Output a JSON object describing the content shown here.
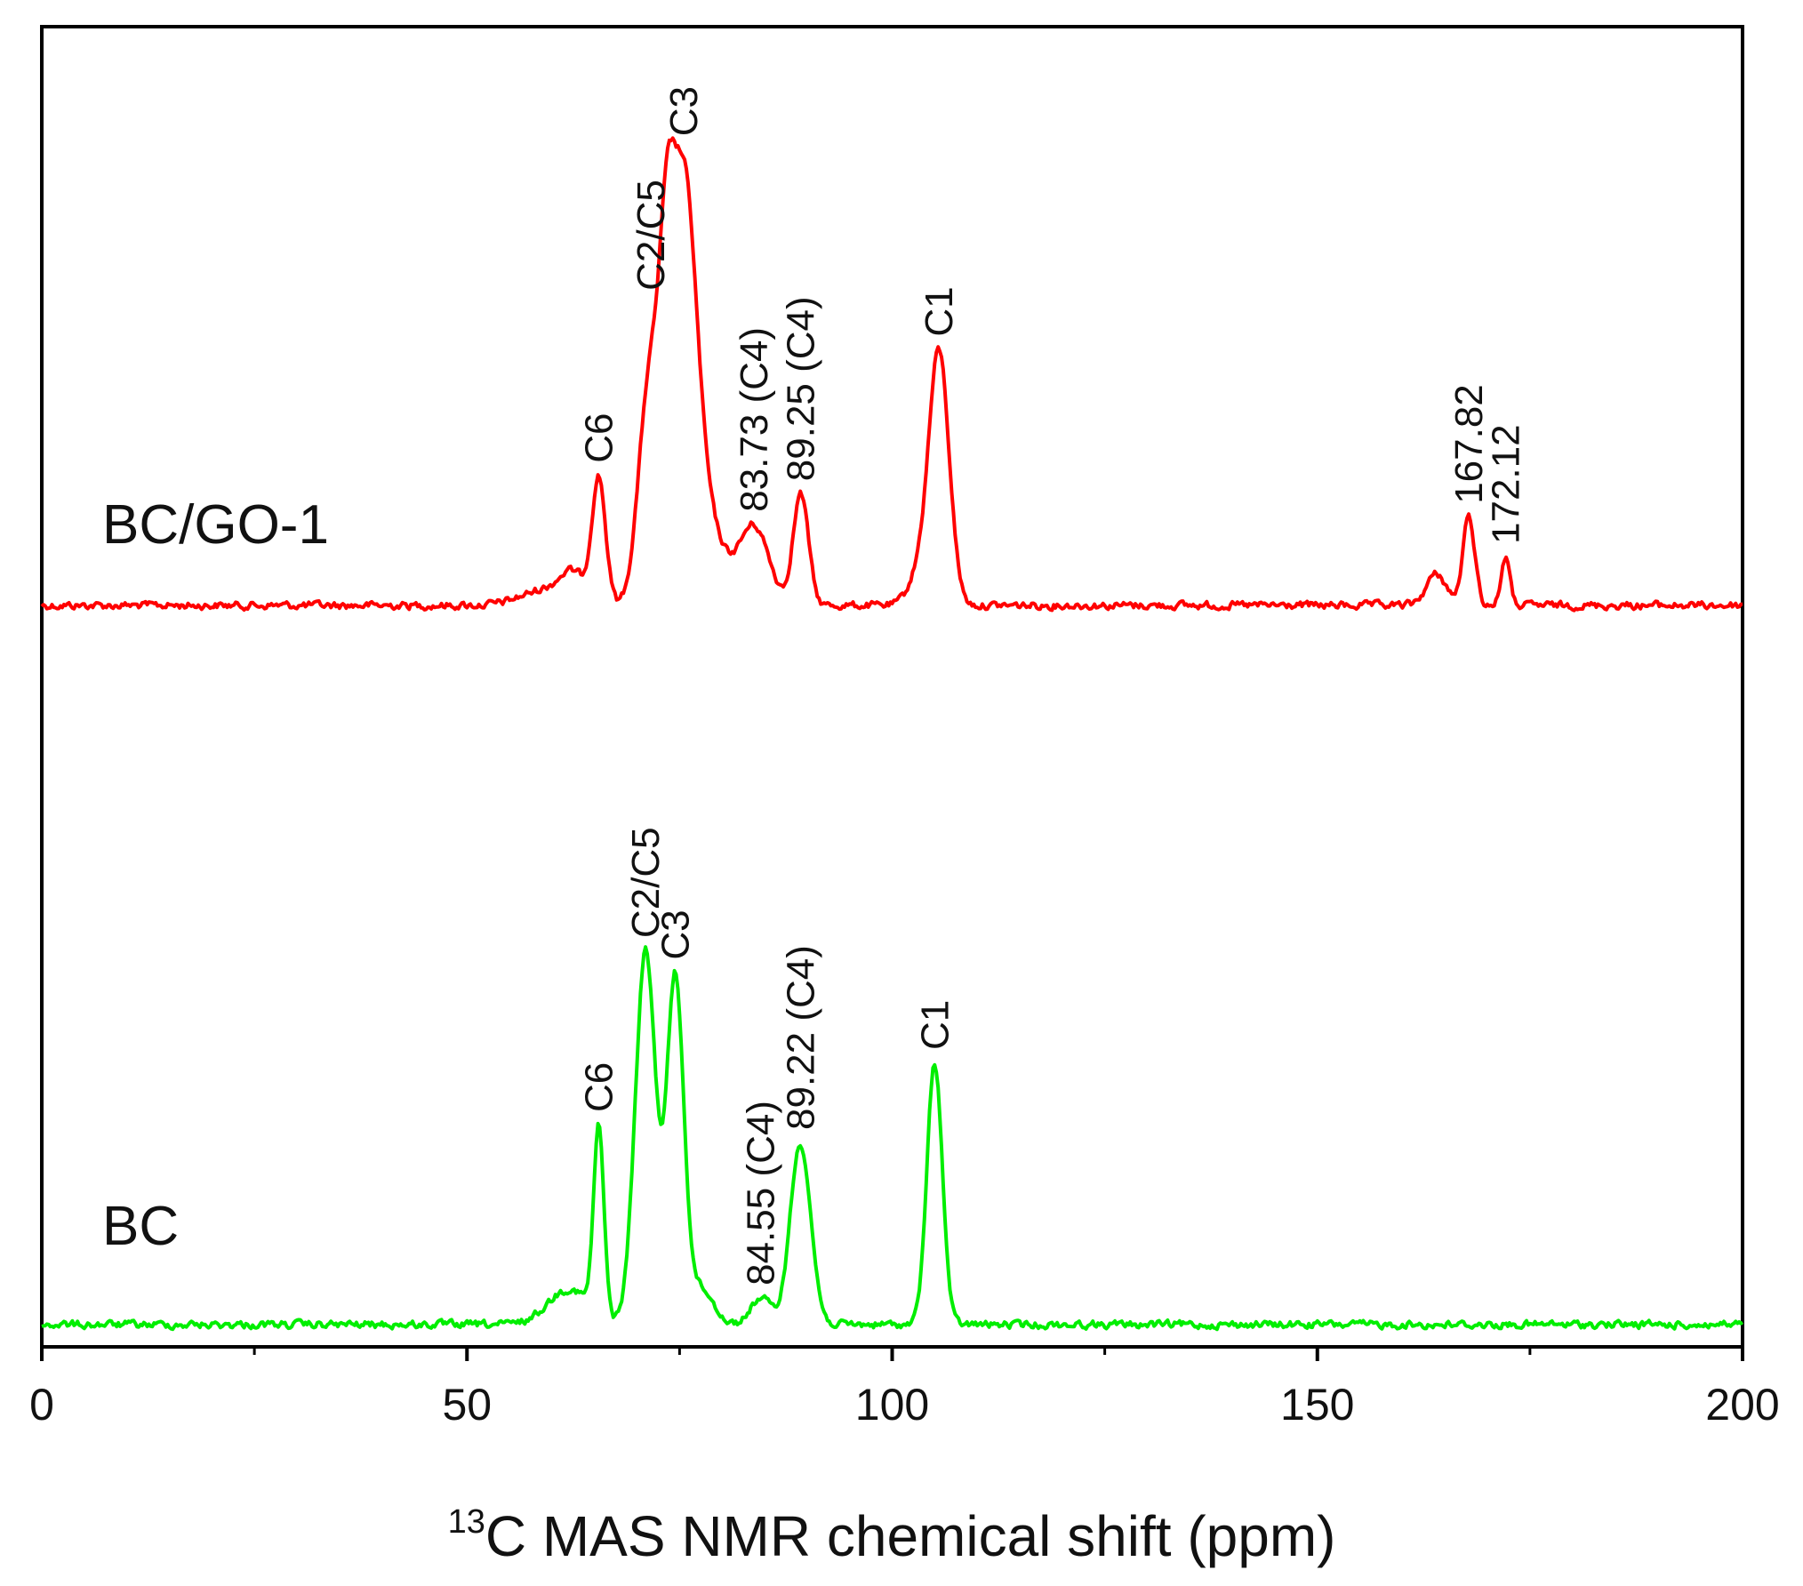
{
  "chart_data": {
    "type": "line",
    "title": "",
    "xlabel_sup": "13",
    "xlabel_main": "C MAS NMR chemical shift (ppm)",
    "ylabel": "",
    "xlim": [
      0,
      200
    ],
    "x_ticks": [
      0,
      50,
      100,
      150,
      200
    ],
    "x_minor_ticks": [
      25,
      75,
      125,
      175
    ],
    "y_ticks_shown": false,
    "series": [
      {
        "name": "BC/GO-1",
        "color": "#ff0000",
        "baseline": 0,
        "peaks": [
          {
            "x": 59.5,
            "h": 18,
            "w": 3.0
          },
          {
            "x": 62.5,
            "h": 28,
            "w": 1.5
          },
          {
            "x": 65.5,
            "h": 140,
            "w": 0.8
          },
          {
            "x": 71.5,
            "h": 250,
            "w": 1.3
          },
          {
            "x": 73.5,
            "h": 235,
            "w": 0.9
          },
          {
            "x": 75.5,
            "h": 460,
            "w": 1.5
          },
          {
            "x": 78.5,
            "h": 80,
            "w": 1.8
          },
          {
            "x": 83.7,
            "h": 90,
            "w": 1.8
          },
          {
            "x": 89.25,
            "h": 125,
            "w": 0.9
          },
          {
            "x": 103.0,
            "h": 30,
            "w": 1.2
          },
          {
            "x": 105.5,
            "h": 285,
            "w": 1.2
          },
          {
            "x": 164.0,
            "h": 35,
            "w": 1.2
          },
          {
            "x": 167.82,
            "h": 100,
            "w": 0.7
          },
          {
            "x": 172.12,
            "h": 55,
            "w": 0.5
          }
        ],
        "annotations": [
          {
            "text": "C6",
            "x": 65.5
          },
          {
            "text": "C2/C5",
            "x": 71.6
          },
          {
            "text": "C3",
            "x": 75.5
          },
          {
            "text": "83.73 (C4)",
            "x": 83.73
          },
          {
            "text": "89.25 (C4)",
            "x": 89.25
          },
          {
            "text": "C1",
            "x": 105.5
          },
          {
            "text": "167.82",
            "x": 167.82
          },
          {
            "text": "172.12",
            "x": 172.12
          }
        ],
        "label": "BC/GO-1"
      },
      {
        "name": "BC",
        "color": "#00ee00",
        "baseline": 0,
        "peaks": [
          {
            "x": 62.0,
            "h": 40,
            "w": 2.5
          },
          {
            "x": 65.5,
            "h": 210,
            "w": 0.6
          },
          {
            "x": 71.0,
            "h": 420,
            "w": 1.2
          },
          {
            "x": 74.5,
            "h": 385,
            "w": 1.0
          },
          {
            "x": 77.5,
            "h": 40,
            "w": 1.5
          },
          {
            "x": 84.55,
            "h": 30,
            "w": 1.2
          },
          {
            "x": 89.22,
            "h": 205,
            "w": 1.2
          },
          {
            "x": 105.0,
            "h": 295,
            "w": 0.9
          }
        ],
        "annotations": [
          {
            "text": "C6",
            "x": 65.5
          },
          {
            "text": "C2/C5",
            "x": 71.0
          },
          {
            "text": "C3",
            "x": 74.5
          },
          {
            "text": "84.55 (C4)",
            "x": 84.55
          },
          {
            "text": "89.22 (C4)",
            "x": 89.22
          },
          {
            "text": "C1",
            "x": 105.0
          }
        ],
        "label": "BC"
      }
    ]
  }
}
